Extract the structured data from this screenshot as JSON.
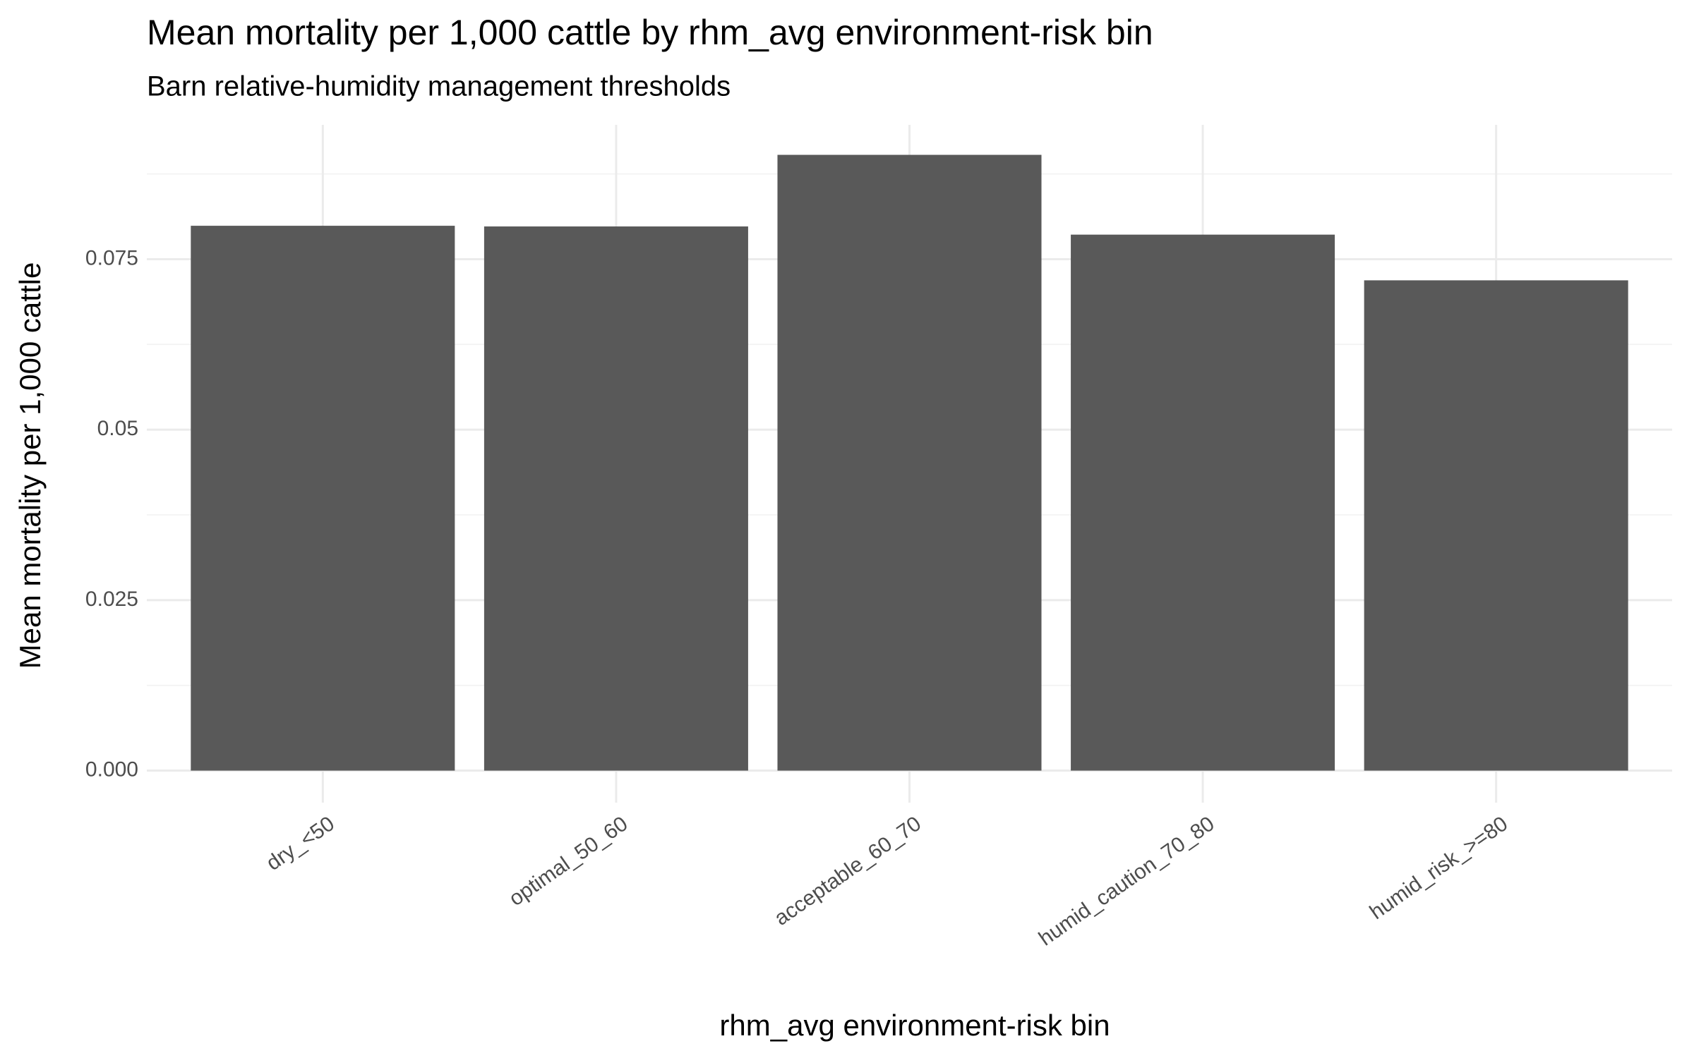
{
  "chart_data": {
    "type": "bar",
    "title": "Mean mortality per 1,000 cattle by rhm_avg environment-risk bin",
    "subtitle": "Barn relative-humidity management thresholds",
    "x_label": "rhm_avg environment-risk bin",
    "y_label": "Mean mortality per 1,000 cattle",
    "categories": [
      "dry_<50",
      "optimal_50_60",
      "acceptable_60_70",
      "humid_caution_70_80",
      "humid_risk_>=80"
    ],
    "values": [
      0.0799,
      0.0798,
      0.0903,
      0.0786,
      0.0719
    ],
    "color": "#595959",
    "ylim": [
      -0.0047,
      0.0947
    ],
    "yticks": [
      {
        "value": 0,
        "label": "0.000"
      },
      0.025,
      0.05,
      0.075
    ],
    "y_minor_ticks": [
      0.0125,
      0.0375,
      0.0625,
      0.0875
    ],
    "grid": true
  }
}
